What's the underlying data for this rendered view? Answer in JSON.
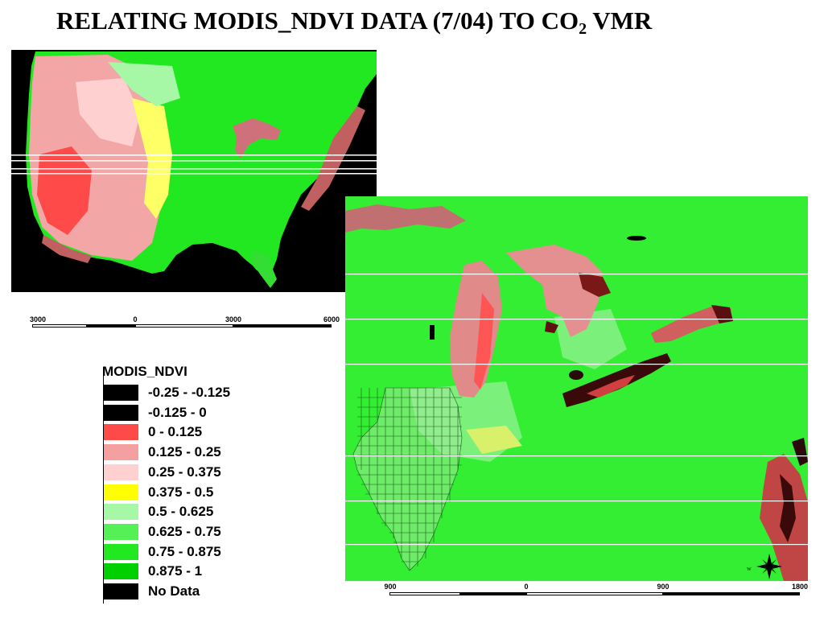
{
  "title": {
    "main": "RELATING MODIS_NDVI DATA (7/04) TO CO",
    "sub": "2",
    "end": " VMR"
  },
  "scalebar_usa": {
    "labels": [
      "3000",
      "0",
      "3000",
      "6000"
    ]
  },
  "scalebar_lakes": {
    "labels": [
      "900",
      "0",
      "900",
      "1800"
    ]
  },
  "compass": {
    "w": "W",
    "s": "S"
  },
  "legend": {
    "title": "MODIS_NDVI",
    "items": [
      {
        "label": "-0.25 - -0.125",
        "color": "#000000"
      },
      {
        "label": "-0.125 - 0",
        "color": "#000000"
      },
      {
        "label": "0 - 0.125",
        "color": "#ff4a4a"
      },
      {
        "label": "0.125 - 0.25",
        "color": "#f5a0a0"
      },
      {
        "label": "0.25 - 0.375",
        "color": "#ffd0d0"
      },
      {
        "label": "0.375 - 0.5",
        "color": "#ffff00"
      },
      {
        "label": "0.5 - 0.625",
        "color": "#a6f7a6"
      },
      {
        "label": "0.625 - 0.75",
        "color": "#55f055"
      },
      {
        "label": "0.75 - 0.875",
        "color": "#22e822"
      },
      {
        "label": "0.875 - 1",
        "color": "#00d000"
      },
      {
        "label": "No Data",
        "color": "#000000"
      }
    ]
  }
}
